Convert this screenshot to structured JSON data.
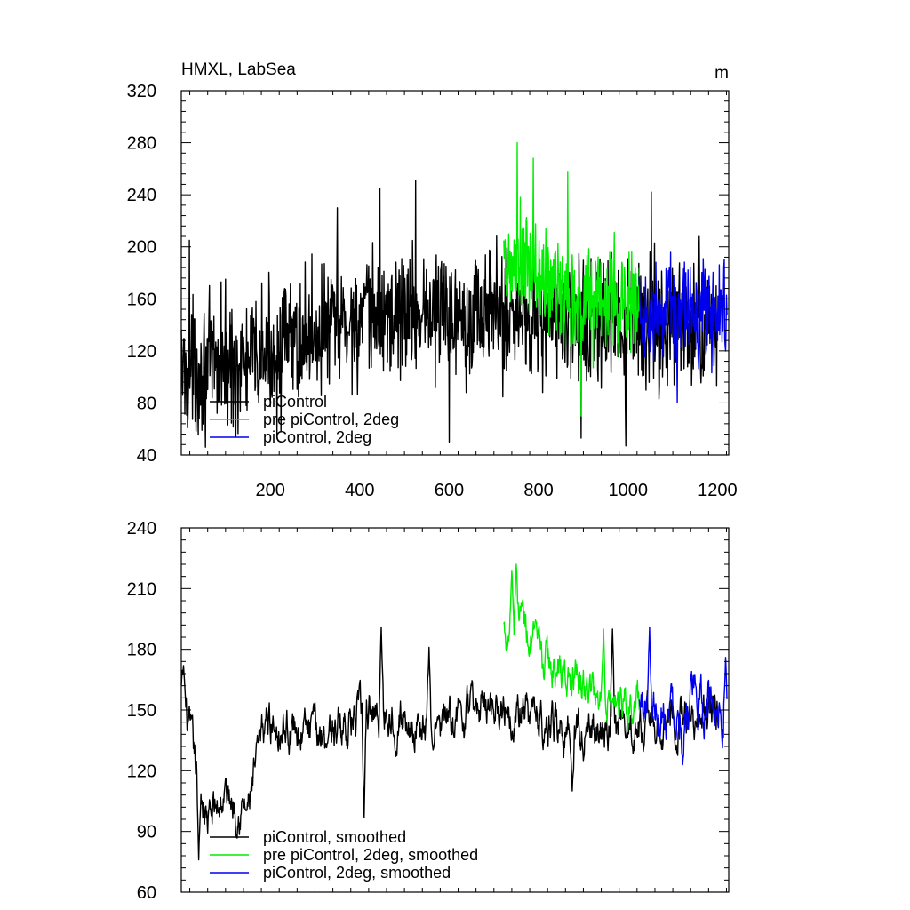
{
  "chart_data": [
    {
      "type": "line",
      "title": "HMXL, LabSea",
      "units": "m",
      "xlim": [
        1,
        1225
      ],
      "ylim": [
        40,
        320
      ],
      "xticks": [
        200,
        400,
        600,
        800,
        1000,
        1200
      ],
      "yticks": [
        40,
        80,
        120,
        160,
        200,
        240,
        280,
        320
      ],
      "show_x_tick_labels": true,
      "grid": false,
      "legend_position": "bottom-left",
      "series": [
        {
          "name": "piControl",
          "color": "#000000",
          "x_start": 1,
          "x_end": 1200,
          "center": 145,
          "amplitude": 42,
          "envelope": [
            [
              1,
              105
            ],
            [
              150,
              110
            ],
            [
              300,
              135
            ],
            [
              500,
              150
            ],
            [
              700,
              150
            ],
            [
              900,
              140
            ],
            [
              1200,
              140
            ]
          ],
          "range": [
            46,
            251
          ],
          "peaks": [
            [
              19,
              205
            ],
            [
              90,
              173
            ],
            [
              350,
              230
            ],
            [
              445,
              245
            ],
            [
              525,
              251
            ],
            [
              600,
              50
            ],
            [
              895,
              53
            ],
            [
              995,
              47
            ]
          ]
        },
        {
          "name": "pre piControl, 2deg",
          "color": "#00ee00",
          "x_start": 722,
          "x_end": 1025,
          "center": 165,
          "amplitude": 38,
          "envelope": [
            [
              722,
              175
            ],
            [
              760,
              185
            ],
            [
              850,
              165
            ],
            [
              1025,
              155
            ]
          ],
          "range": [
            70,
            280
          ],
          "peaks": [
            [
              752,
              280
            ],
            [
              788,
              268
            ],
            [
              865,
              258
            ],
            [
              895,
              70
            ]
          ]
        },
        {
          "name": "piControl, 2deg",
          "color": "#0000ee",
          "x_start": 1025,
          "x_end": 1221,
          "center": 150,
          "amplitude": 32,
          "envelope": [
            [
              1025,
              150
            ],
            [
              1221,
              150
            ]
          ],
          "range": [
            80,
            242
          ],
          "peaks": [
            [
              1052,
              242
            ],
            [
              1110,
              80
            ]
          ]
        }
      ]
    },
    {
      "type": "line",
      "title": "",
      "units": "",
      "xlim": [
        1,
        1225
      ],
      "ylim": [
        60,
        240
      ],
      "xticks": [
        200,
        400,
        600,
        800,
        1000,
        1200
      ],
      "yticks": [
        60,
        90,
        120,
        150,
        180,
        210,
        240
      ],
      "show_x_tick_labels": false,
      "grid": false,
      "legend_position": "bottom-left",
      "series": [
        {
          "name": "piControl, smoothed",
          "color": "#000000",
          "x_start": 1,
          "x_end": 1200,
          "center": 145,
          "amplitude": 10,
          "envelope": [
            [
              1,
              160
            ],
            [
              30,
              125
            ],
            [
              60,
              95
            ],
            [
              100,
              108
            ],
            [
              150,
              100
            ],
            [
              190,
              145
            ],
            [
              300,
              138
            ],
            [
              450,
              150
            ],
            [
              560,
              140
            ],
            [
              700,
              155
            ],
            [
              800,
              145
            ],
            [
              900,
              138
            ],
            [
              1000,
              140
            ],
            [
              1100,
              145
            ],
            [
              1200,
              150
            ]
          ],
          "range": [
            76,
            191
          ],
          "peaks": [
            [
              6,
              172
            ],
            [
              40,
              76
            ],
            [
              448,
              191
            ],
            [
              410,
              97
            ],
            [
              555,
              181
            ],
            [
              875,
              110
            ],
            [
              965,
              190
            ]
          ]
        },
        {
          "name": "pre piControl, 2deg, smoothed",
          "color": "#00ee00",
          "x_start": 722,
          "x_end": 1025,
          "center": 160,
          "amplitude": 10,
          "envelope": [
            [
              722,
              190
            ],
            [
              760,
              200
            ],
            [
              800,
              175
            ],
            [
              900,
              160
            ],
            [
              1025,
              152
            ]
          ],
          "range": [
            132,
            222
          ],
          "peaks": [
            [
              750,
              222
            ],
            [
              740,
              219
            ],
            [
              945,
              190
            ]
          ]
        },
        {
          "name": "piControl, 2deg, smoothed",
          "color": "#0000ee",
          "x_start": 1025,
          "x_end": 1221,
          "center": 152,
          "amplitude": 12,
          "envelope": [
            [
              1025,
              152
            ],
            [
              1221,
              152
            ]
          ],
          "range": [
            123,
            191
          ],
          "peaks": [
            [
              1048,
              191
            ],
            [
              1122,
              123
            ],
            [
              1218,
              176
            ]
          ]
        }
      ]
    }
  ]
}
